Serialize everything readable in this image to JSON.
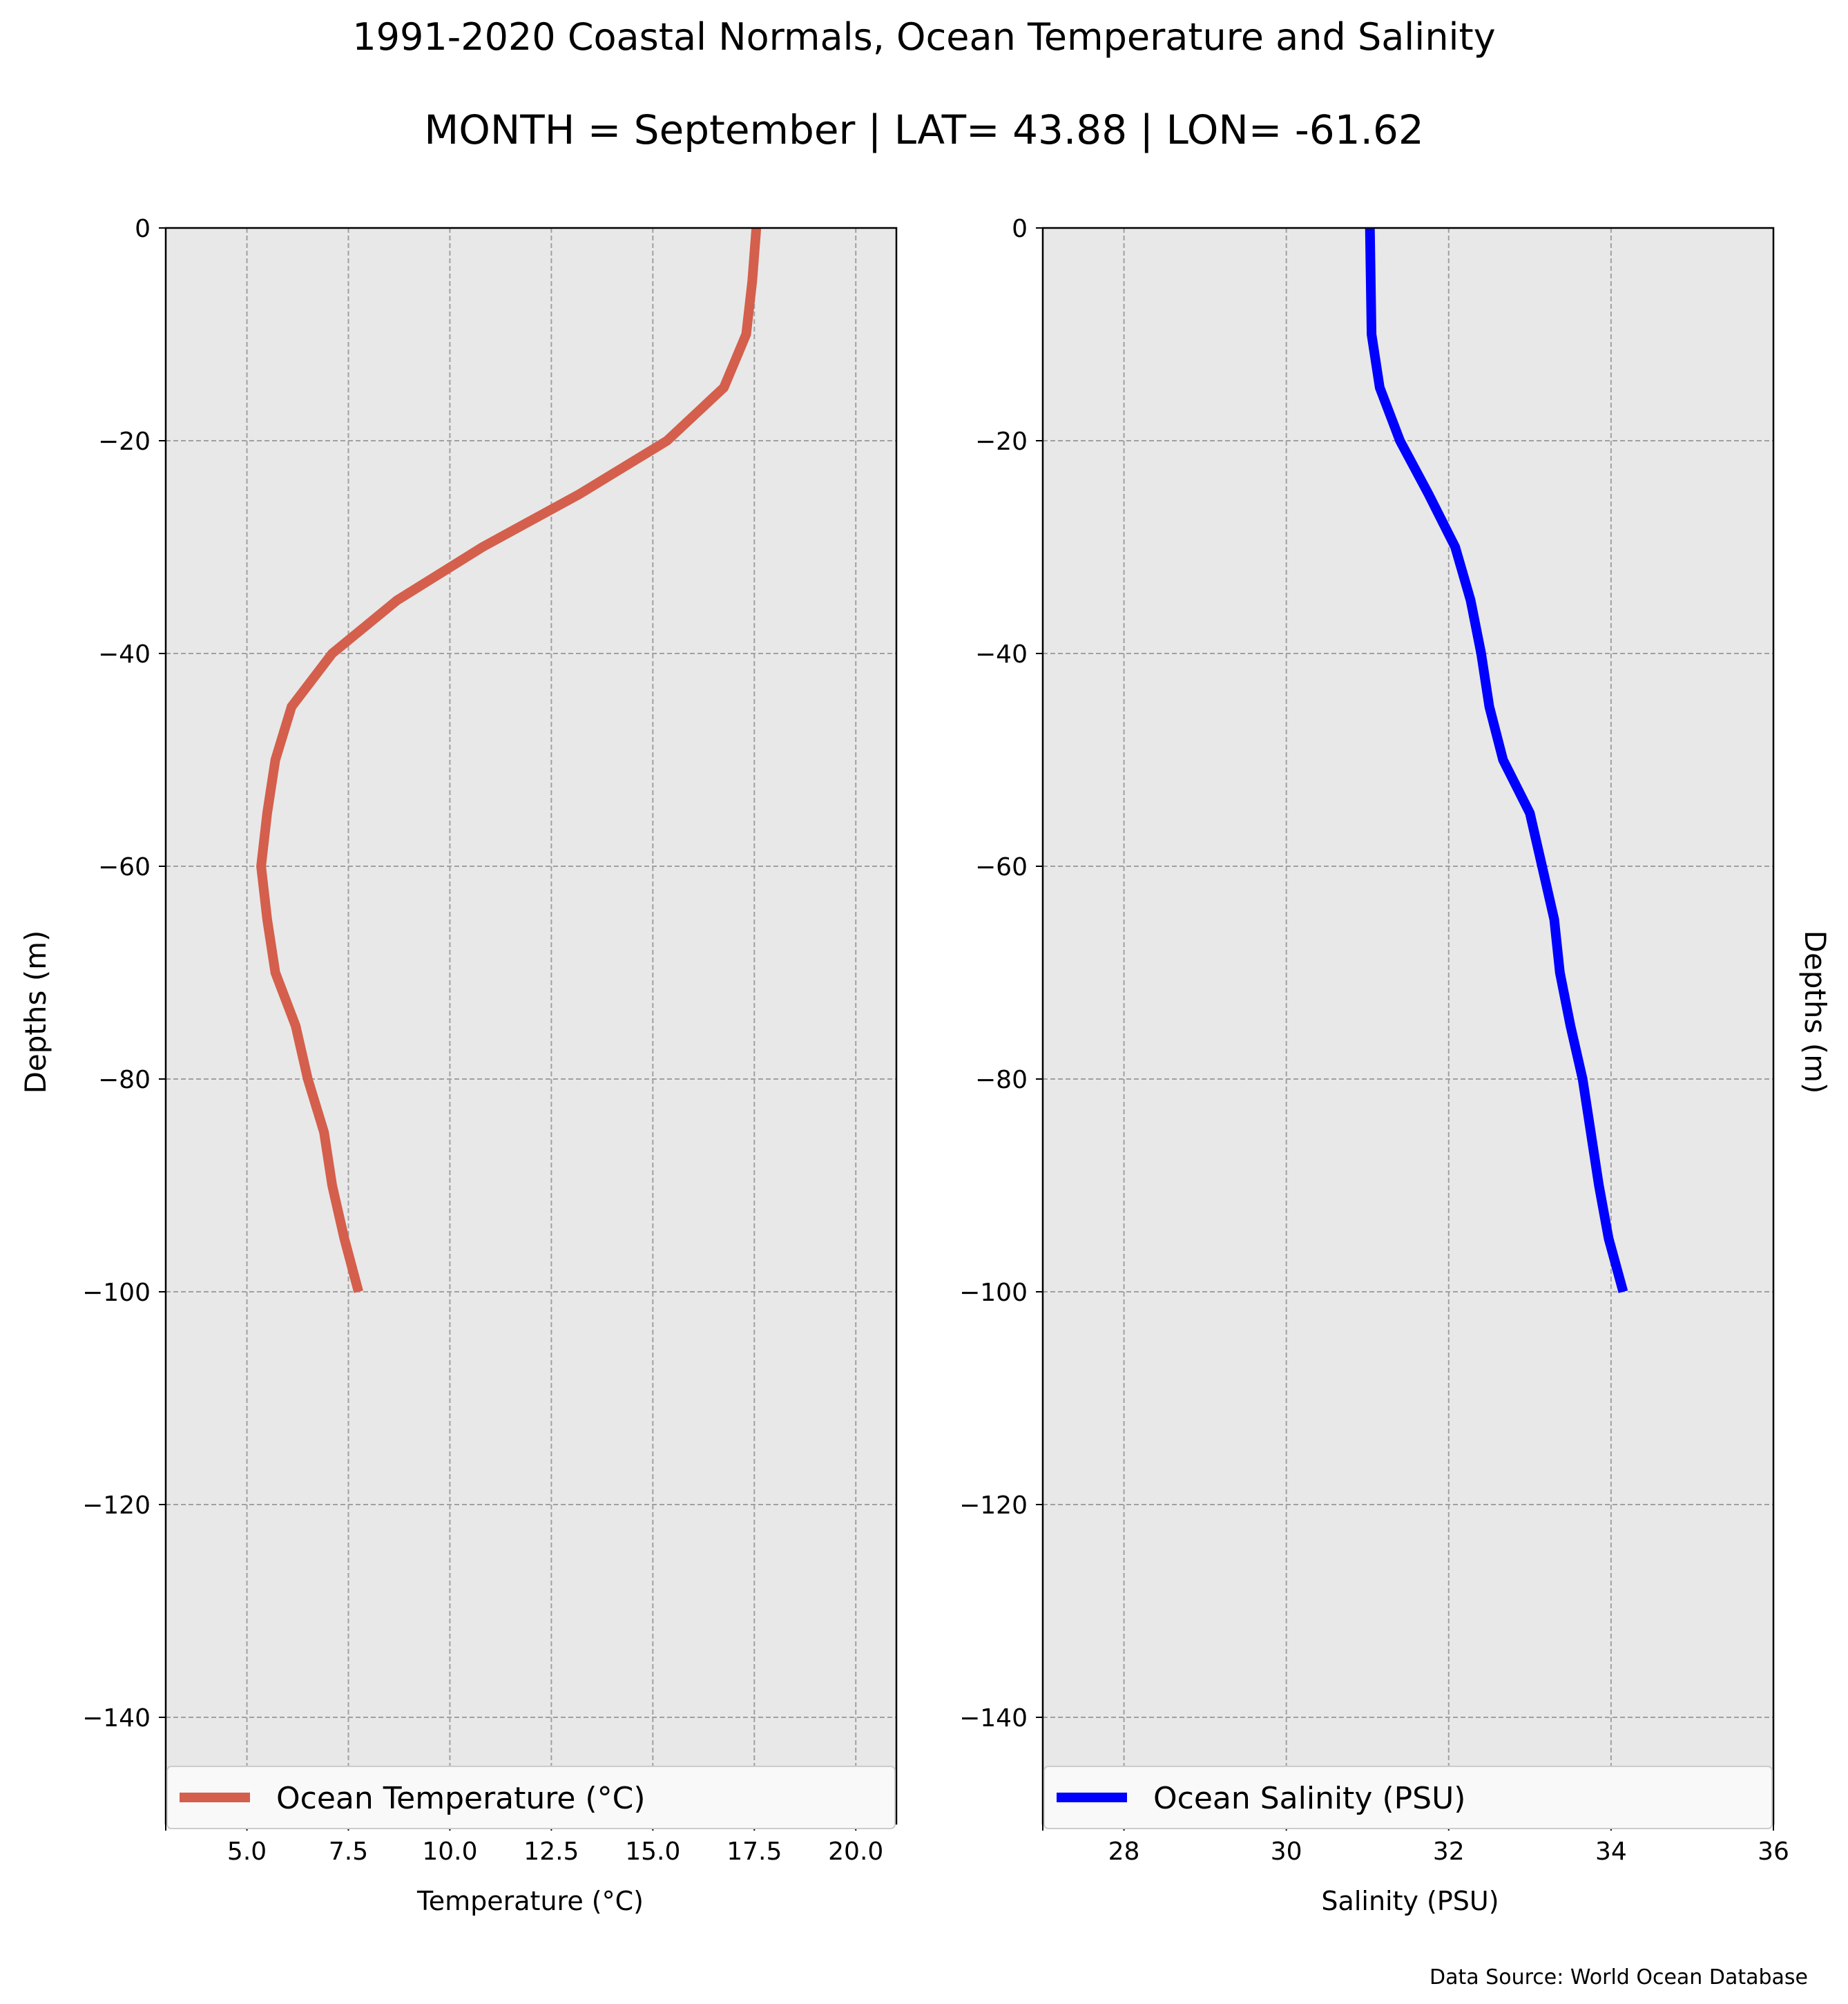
{
  "title": "1991-2020 Coastal Normals, Ocean Temperature and Salinity",
  "subtitle": "MONTH = September | LAT= 43.88 | LON= -61.62",
  "source_note": "Data Source: World Ocean Database",
  "chart_data": [
    {
      "type": "line",
      "xlabel": "Temperature (°C)",
      "ylabel": "Depths (m)",
      "xlim": [
        3.0,
        21.0
      ],
      "ylim": [
        -150,
        0
      ],
      "xticks": [
        5.0,
        7.5,
        10.0,
        12.5,
        15.0,
        17.5,
        20.0
      ],
      "xtick_labels": [
        "5.0",
        "7.5",
        "10.0",
        "12.5",
        "15.0",
        "17.5",
        "20.0"
      ],
      "yticks": [
        0,
        -20,
        -40,
        -60,
        -80,
        -100,
        -120,
        -140
      ],
      "ytick_labels": [
        "0",
        "−20",
        "−40",
        "−60",
        "−80",
        "−100",
        "−120",
        "−140"
      ],
      "grid": true,
      "legend_position": "bottom",
      "series": [
        {
          "name": "Ocean Temperature (°C)",
          "color": "#d45f4c",
          "x": [
            17.55,
            17.45,
            17.3,
            16.75,
            15.35,
            13.2,
            10.8,
            8.7,
            7.1,
            6.1,
            5.7,
            5.5,
            5.35,
            5.5,
            5.7,
            6.2,
            6.5,
            6.9,
            7.1,
            7.4,
            7.75
          ],
          "y": [
            0,
            -5,
            -10,
            -15,
            -20,
            -25,
            -30,
            -35,
            -40,
            -45,
            -50,
            -55,
            -60,
            -65,
            -70,
            -75,
            -80,
            -85,
            -90,
            -95,
            -100
          ]
        }
      ]
    },
    {
      "type": "line",
      "xlabel": "Salinity (PSU)",
      "ylabel": "Depths (m)",
      "xlim": [
        27,
        36
      ],
      "ylim": [
        -150,
        0
      ],
      "xticks": [
        28,
        30,
        32,
        34,
        36
      ],
      "xtick_labels": [
        "28",
        "30",
        "32",
        "34",
        "36"
      ],
      "yticks": [
        0,
        -20,
        -40,
        -60,
        -80,
        -100,
        -120,
        -140
      ],
      "ytick_labels": [
        "0",
        "−20",
        "−40",
        "−60",
        "−80",
        "−100",
        "−120",
        "−140"
      ],
      "grid": true,
      "legend_position": "bottom",
      "series": [
        {
          "name": "Ocean Salinity (PSU)",
          "color": "#0000ff",
          "x": [
            31.03,
            31.04,
            31.05,
            31.15,
            31.4,
            31.75,
            32.08,
            32.27,
            32.4,
            32.5,
            32.67,
            33.0,
            33.15,
            33.3,
            33.37,
            33.5,
            33.65,
            33.75,
            33.85,
            33.97,
            34.15
          ],
          "y": [
            0,
            -5,
            -10,
            -15,
            -20,
            -25,
            -30,
            -35,
            -40,
            -45,
            -50,
            -55,
            -60,
            -65,
            -70,
            -75,
            -80,
            -85,
            -90,
            -95,
            -100
          ]
        }
      ]
    }
  ]
}
